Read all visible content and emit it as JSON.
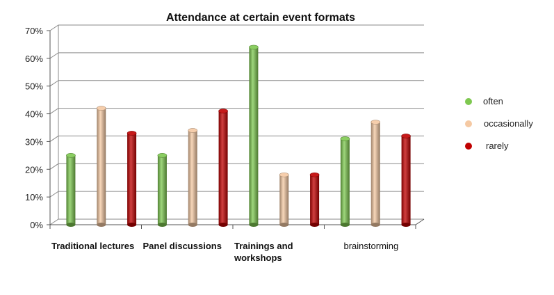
{
  "chart_data": {
    "type": "bar",
    "title": "Attendance at certain event formats",
    "categories": [
      [
        "Traditional lectures"
      ],
      [
        "Panel discussions"
      ],
      [
        "Trainings and",
        "workshops"
      ],
      [
        "brainstorming"
      ]
    ],
    "category_bold": [
      true,
      true,
      true,
      false
    ],
    "series": [
      {
        "name": "often",
        "values": [
          25,
          25,
          64,
          31
        ],
        "color": "#7ec850"
      },
      {
        "name": "occasionally",
        "values": [
          42,
          34,
          18,
          37
        ],
        "color": "#f5c9a3"
      },
      {
        "name": "rarely",
        "values": [
          33,
          41,
          18,
          32
        ],
        "color": "#c00000"
      }
    ],
    "ylim": [
      0,
      70
    ],
    "yticks": [
      0,
      10,
      20,
      30,
      40,
      50,
      60,
      70
    ],
    "ytick_labels": [
      "0%",
      "10%",
      "20%",
      "30%",
      "40%",
      "50%",
      "60%",
      "70%"
    ],
    "grid": true,
    "legend_position": "right",
    "xlabel": "",
    "ylabel": ""
  }
}
